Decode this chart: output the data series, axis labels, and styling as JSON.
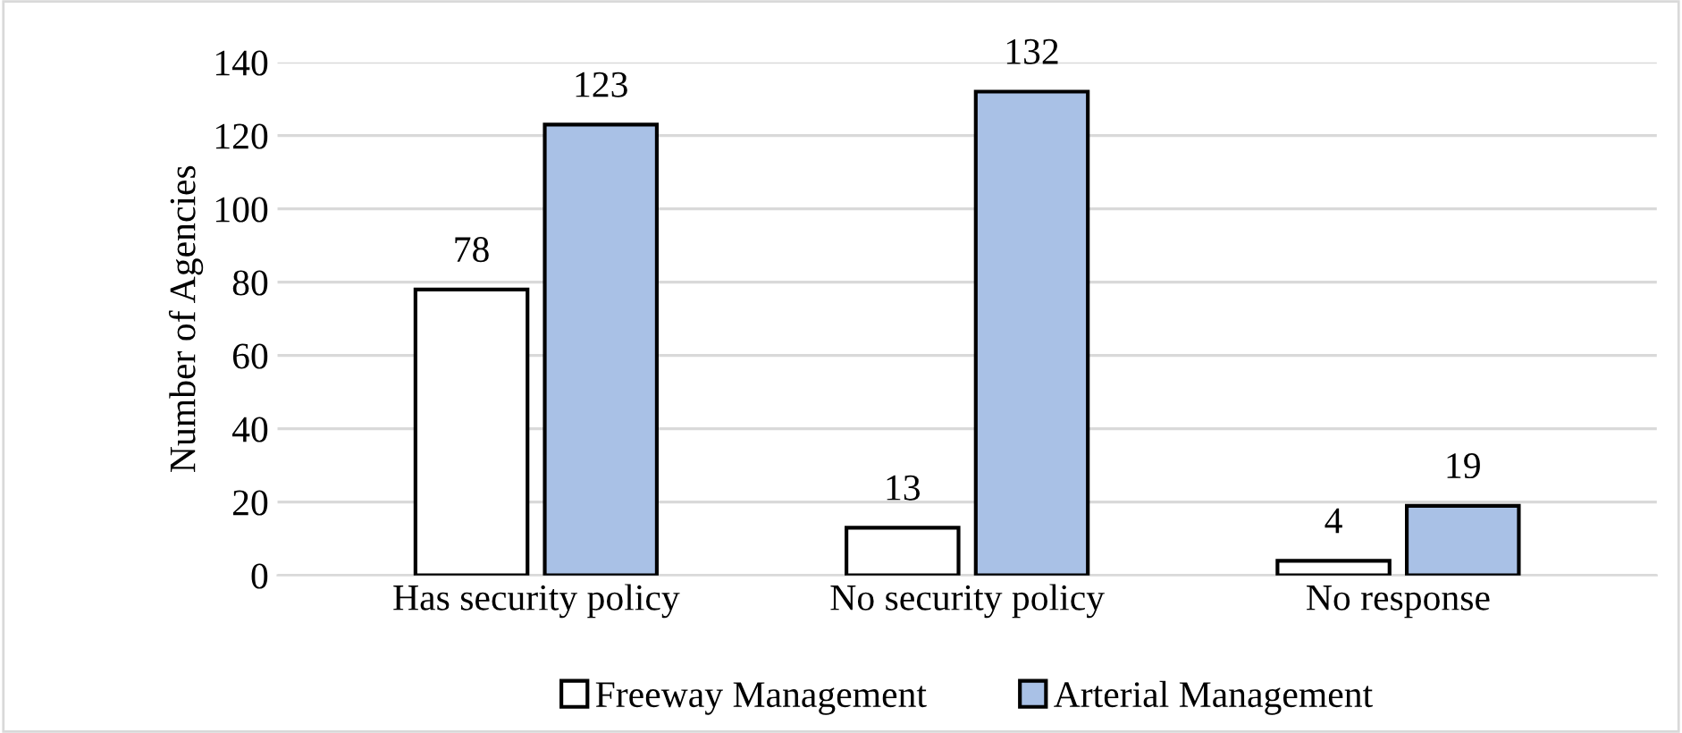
{
  "chart_data": {
    "type": "bar",
    "ylabel": "Number of Agencies",
    "categories": [
      "Has security policy",
      "No security policy",
      "No response"
    ],
    "series": [
      {
        "name": "Freeway Management",
        "color": "#ffffff",
        "values": [
          78,
          13,
          4
        ]
      },
      {
        "name": "Arterial Management",
        "color": "#a9c1e6",
        "values": [
          123,
          132,
          19
        ]
      }
    ],
    "ylim": [
      0,
      140
    ],
    "yticks": [
      0,
      20,
      40,
      60,
      80,
      100,
      120,
      140
    ],
    "grid": "y",
    "legend": "bottom",
    "data_labels": true
  }
}
